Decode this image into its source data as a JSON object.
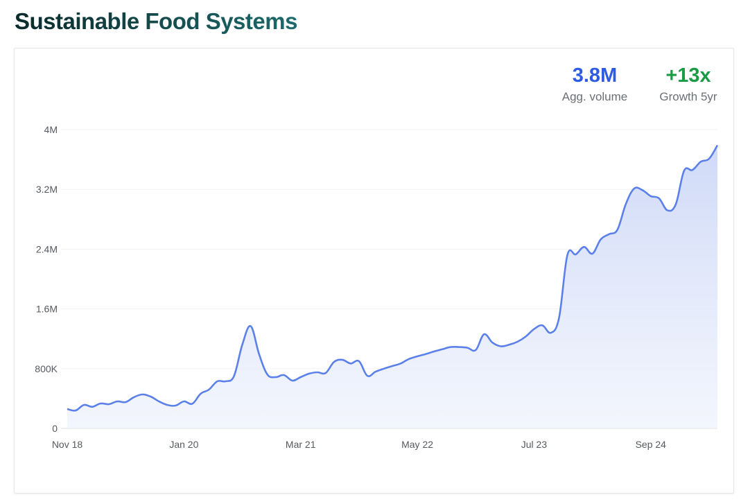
{
  "title": "Sustainable Food Systems",
  "stats": [
    {
      "value": "3.8M",
      "label": "Agg. volume",
      "color": "#2d5be3"
    },
    {
      "value": "+13x",
      "label": "Growth 5yr",
      "color": "#1a9b45"
    }
  ],
  "chart_data": {
    "type": "area",
    "title": "",
    "xlabel": "",
    "ylabel": "",
    "ylim": [
      0,
      4000000
    ],
    "y_ticks": [
      {
        "value": 0,
        "label": "0"
      },
      {
        "value": 800000,
        "label": "800K"
      },
      {
        "value": 1600000,
        "label": "1.6M"
      },
      {
        "value": 2400000,
        "label": "2.4M"
      },
      {
        "value": 3200000,
        "label": "3.2M"
      },
      {
        "value": 4000000,
        "label": "4M"
      }
    ],
    "x_ticks": [
      {
        "date": "2018-11",
        "label": "Nov 18"
      },
      {
        "date": "2020-01",
        "label": "Jan 20"
      },
      {
        "date": "2021-03",
        "label": "Mar 21"
      },
      {
        "date": "2022-05",
        "label": "May 22"
      },
      {
        "date": "2023-07",
        "label": "Jul 23"
      },
      {
        "date": "2024-09",
        "label": "Sep 24"
      }
    ],
    "grid": true,
    "line_color": "#5b80e9",
    "fill_color": "#cdd8f7",
    "x": [
      "2018-11",
      "2018-12",
      "2019-01",
      "2019-02",
      "2019-03",
      "2019-04",
      "2019-05",
      "2019-06",
      "2019-07",
      "2019-08",
      "2019-09",
      "2019-10",
      "2019-11",
      "2019-12",
      "2020-01",
      "2020-02",
      "2020-03",
      "2020-04",
      "2020-05",
      "2020-06",
      "2020-07",
      "2020-08",
      "2020-09",
      "2020-10",
      "2020-11",
      "2020-12",
      "2021-01",
      "2021-02",
      "2021-03",
      "2021-04",
      "2021-05",
      "2021-06",
      "2021-07",
      "2021-08",
      "2021-09",
      "2021-10",
      "2021-11",
      "2021-12",
      "2022-01",
      "2022-02",
      "2022-03",
      "2022-04",
      "2022-05",
      "2022-06",
      "2022-07",
      "2022-08",
      "2022-09",
      "2022-10",
      "2022-11",
      "2022-12",
      "2023-01",
      "2023-02",
      "2023-03",
      "2023-04",
      "2023-05",
      "2023-06",
      "2023-07",
      "2023-08",
      "2023-09",
      "2023-10",
      "2023-11",
      "2023-12",
      "2024-01",
      "2024-02",
      "2024-03",
      "2024-04",
      "2024-05",
      "2024-06",
      "2024-07",
      "2024-08",
      "2024-09",
      "2024-10",
      "2024-11",
      "2024-12",
      "2025-01",
      "2025-02",
      "2025-03",
      "2025-04",
      "2025-05"
    ],
    "series": [
      {
        "values": [
          260000,
          240000,
          315000,
          290000,
          334000,
          325000,
          362000,
          353000,
          418000,
          455000,
          427000,
          362000,
          315000,
          306000,
          362000,
          330000,
          464000,
          520000,
          631000,
          631000,
          700000,
          1120000,
          1370000,
          1000000,
          724000,
          687000,
          715000,
          640000,
          687000,
          733000,
          752000,
          742000,
          890000,
          920000,
          870000,
          900000,
          705000,
          760000,
          800000,
          835000,
          870000,
          930000,
          965000,
          995000,
          1030000,
          1060000,
          1090000,
          1090000,
          1080000,
          1050000,
          1260000,
          1150000,
          1100000,
          1120000,
          1160000,
          1230000,
          1330000,
          1380000,
          1280000,
          1480000,
          2320000,
          2330000,
          2430000,
          2340000,
          2530000,
          2600000,
          2660000,
          3000000,
          3210000,
          3190000,
          3110000,
          3080000,
          2920000,
          3000000,
          3450000,
          3460000,
          3570000,
          3610000,
          3790000
        ]
      }
    ]
  }
}
